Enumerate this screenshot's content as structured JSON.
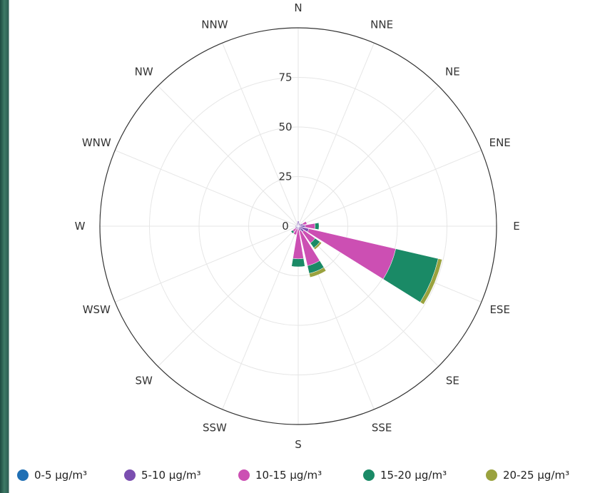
{
  "chart_data": {
    "type": "windrose",
    "directions": [
      "N",
      "NNE",
      "NE",
      "ENE",
      "E",
      "ESE",
      "SE",
      "SSE",
      "S",
      "SSW",
      "SW",
      "WSW",
      "W",
      "WNW",
      "NW",
      "NNW"
    ],
    "radial_ticks": [
      "0",
      "25",
      "50",
      "75"
    ],
    "radial_max": 100,
    "grid": true,
    "legend_position": "bottom",
    "series": [
      {
        "name": "0-5 µg/m³",
        "color": "#1f6fb4",
        "values": [
          0.5,
          0.5,
          0.5,
          0.5,
          0.5,
          0.5,
          0.5,
          0.5,
          0.5,
          0.5,
          0.5,
          0.5,
          0.5,
          0.5,
          0.5,
          0.5
        ]
      },
      {
        "name": "5-10 µg/m³",
        "color": "#7b4fb0",
        "values": [
          2,
          1,
          1,
          2,
          3,
          5,
          3,
          2,
          1,
          1,
          1,
          1,
          1,
          0.5,
          0.5,
          1
        ]
      },
      {
        "name": "10-15 µg/m³",
        "color": "#cc4fb3",
        "values": [
          0,
          0,
          0,
          2,
          5,
          45,
          7,
          18,
          15,
          3,
          2,
          0,
          0,
          0,
          0,
          0
        ]
      },
      {
        "name": "15-20 µg/m³",
        "color": "#1a8a66",
        "values": [
          0,
          0,
          0,
          0,
          2,
          22,
          3,
          4,
          4,
          0,
          1,
          0,
          0,
          0,
          0,
          0
        ]
      },
      {
        "name": "20-25 µg/m³",
        "color": "#9aa23e",
        "values": [
          0,
          0,
          0,
          0,
          0,
          2,
          1,
          2,
          0,
          0,
          0,
          0,
          0,
          0,
          0,
          0
        ]
      }
    ]
  }
}
